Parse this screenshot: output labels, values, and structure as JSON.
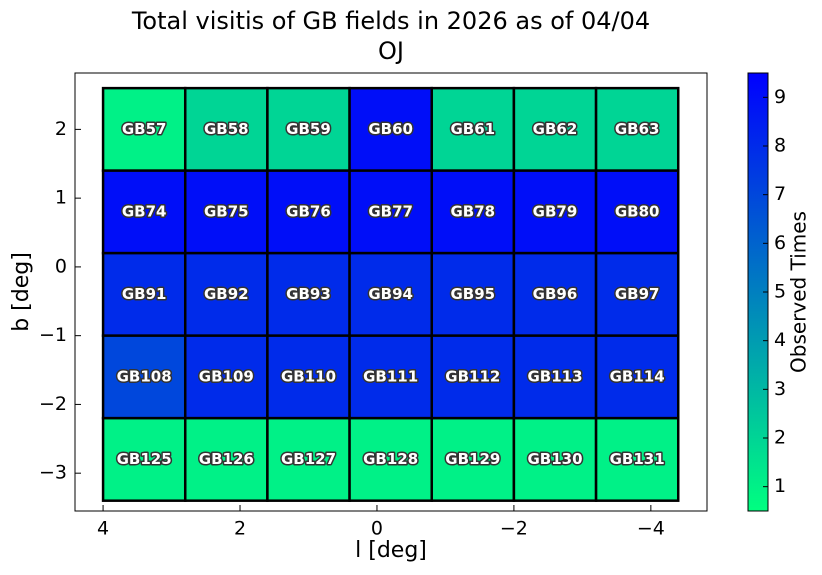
{
  "chart_data": {
    "type": "heatmap",
    "title": "Total visitis of GB fields in 2026 as of 04/04",
    "subtitle": "OJ",
    "x_label": "l [deg]",
    "y_label": "b [deg]",
    "xlim": [
      4.41,
      -4.82
    ],
    "ylim": [
      -3.55,
      2.82
    ],
    "xticks": [
      4,
      2,
      0,
      {
        "value": -2,
        "label": "−2"
      },
      {
        "value": -4,
        "label": "−4"
      }
    ],
    "yticks": [
      2,
      1,
      0,
      {
        "value": -1,
        "label": "−1"
      },
      {
        "value": -2,
        "label": "−2"
      },
      {
        "value": -3,
        "label": "−3"
      }
    ],
    "l": [
      3.4,
      2.2,
      1.0,
      -0.2,
      -1.4,
      -2.6,
      -3.8
    ],
    "rows": [
      {
        "b": 2.0,
        "labels": [
          "GB57",
          "GB58",
          "GB59",
          "GB60",
          "GB61",
          "GB62",
          "GB63"
        ],
        "values": [
          1,
          2,
          2,
          9,
          2,
          2,
          2
        ]
      },
      {
        "b": 0.8,
        "labels": [
          "GB74",
          "GB75",
          "GB76",
          "GB77",
          "GB78",
          "GB79",
          "GB80"
        ],
        "values": [
          9,
          9,
          9,
          9,
          9,
          9,
          9
        ]
      },
      {
        "b": -0.4,
        "labels": [
          "GB91",
          "GB92",
          "GB93",
          "GB94",
          "GB95",
          "GB96",
          "GB97"
        ],
        "values": [
          8,
          8,
          8,
          8,
          8,
          8,
          8
        ]
      },
      {
        "b": -1.6,
        "labels": [
          "GB108",
          "GB109",
          "GB110",
          "GB111",
          "GB112",
          "GB113",
          "GB114"
        ],
        "values": [
          7,
          8,
          8,
          8,
          8,
          8,
          8
        ]
      },
      {
        "b": -2.8,
        "labels": [
          "GB125",
          "GB126",
          "GB127",
          "GB128",
          "GB129",
          "GB130",
          "GB131"
        ],
        "values": [
          1,
          1,
          1,
          1,
          1,
          1,
          1
        ]
      }
    ],
    "colorbar": {
      "label": "Observed Times",
      "clim": [
        0.5,
        9.5
      ],
      "ticks": [
        1,
        2,
        3,
        4,
        5,
        6,
        7,
        8,
        9
      ],
      "colors": [
        "#00ff80",
        "#0000ff"
      ]
    }
  }
}
